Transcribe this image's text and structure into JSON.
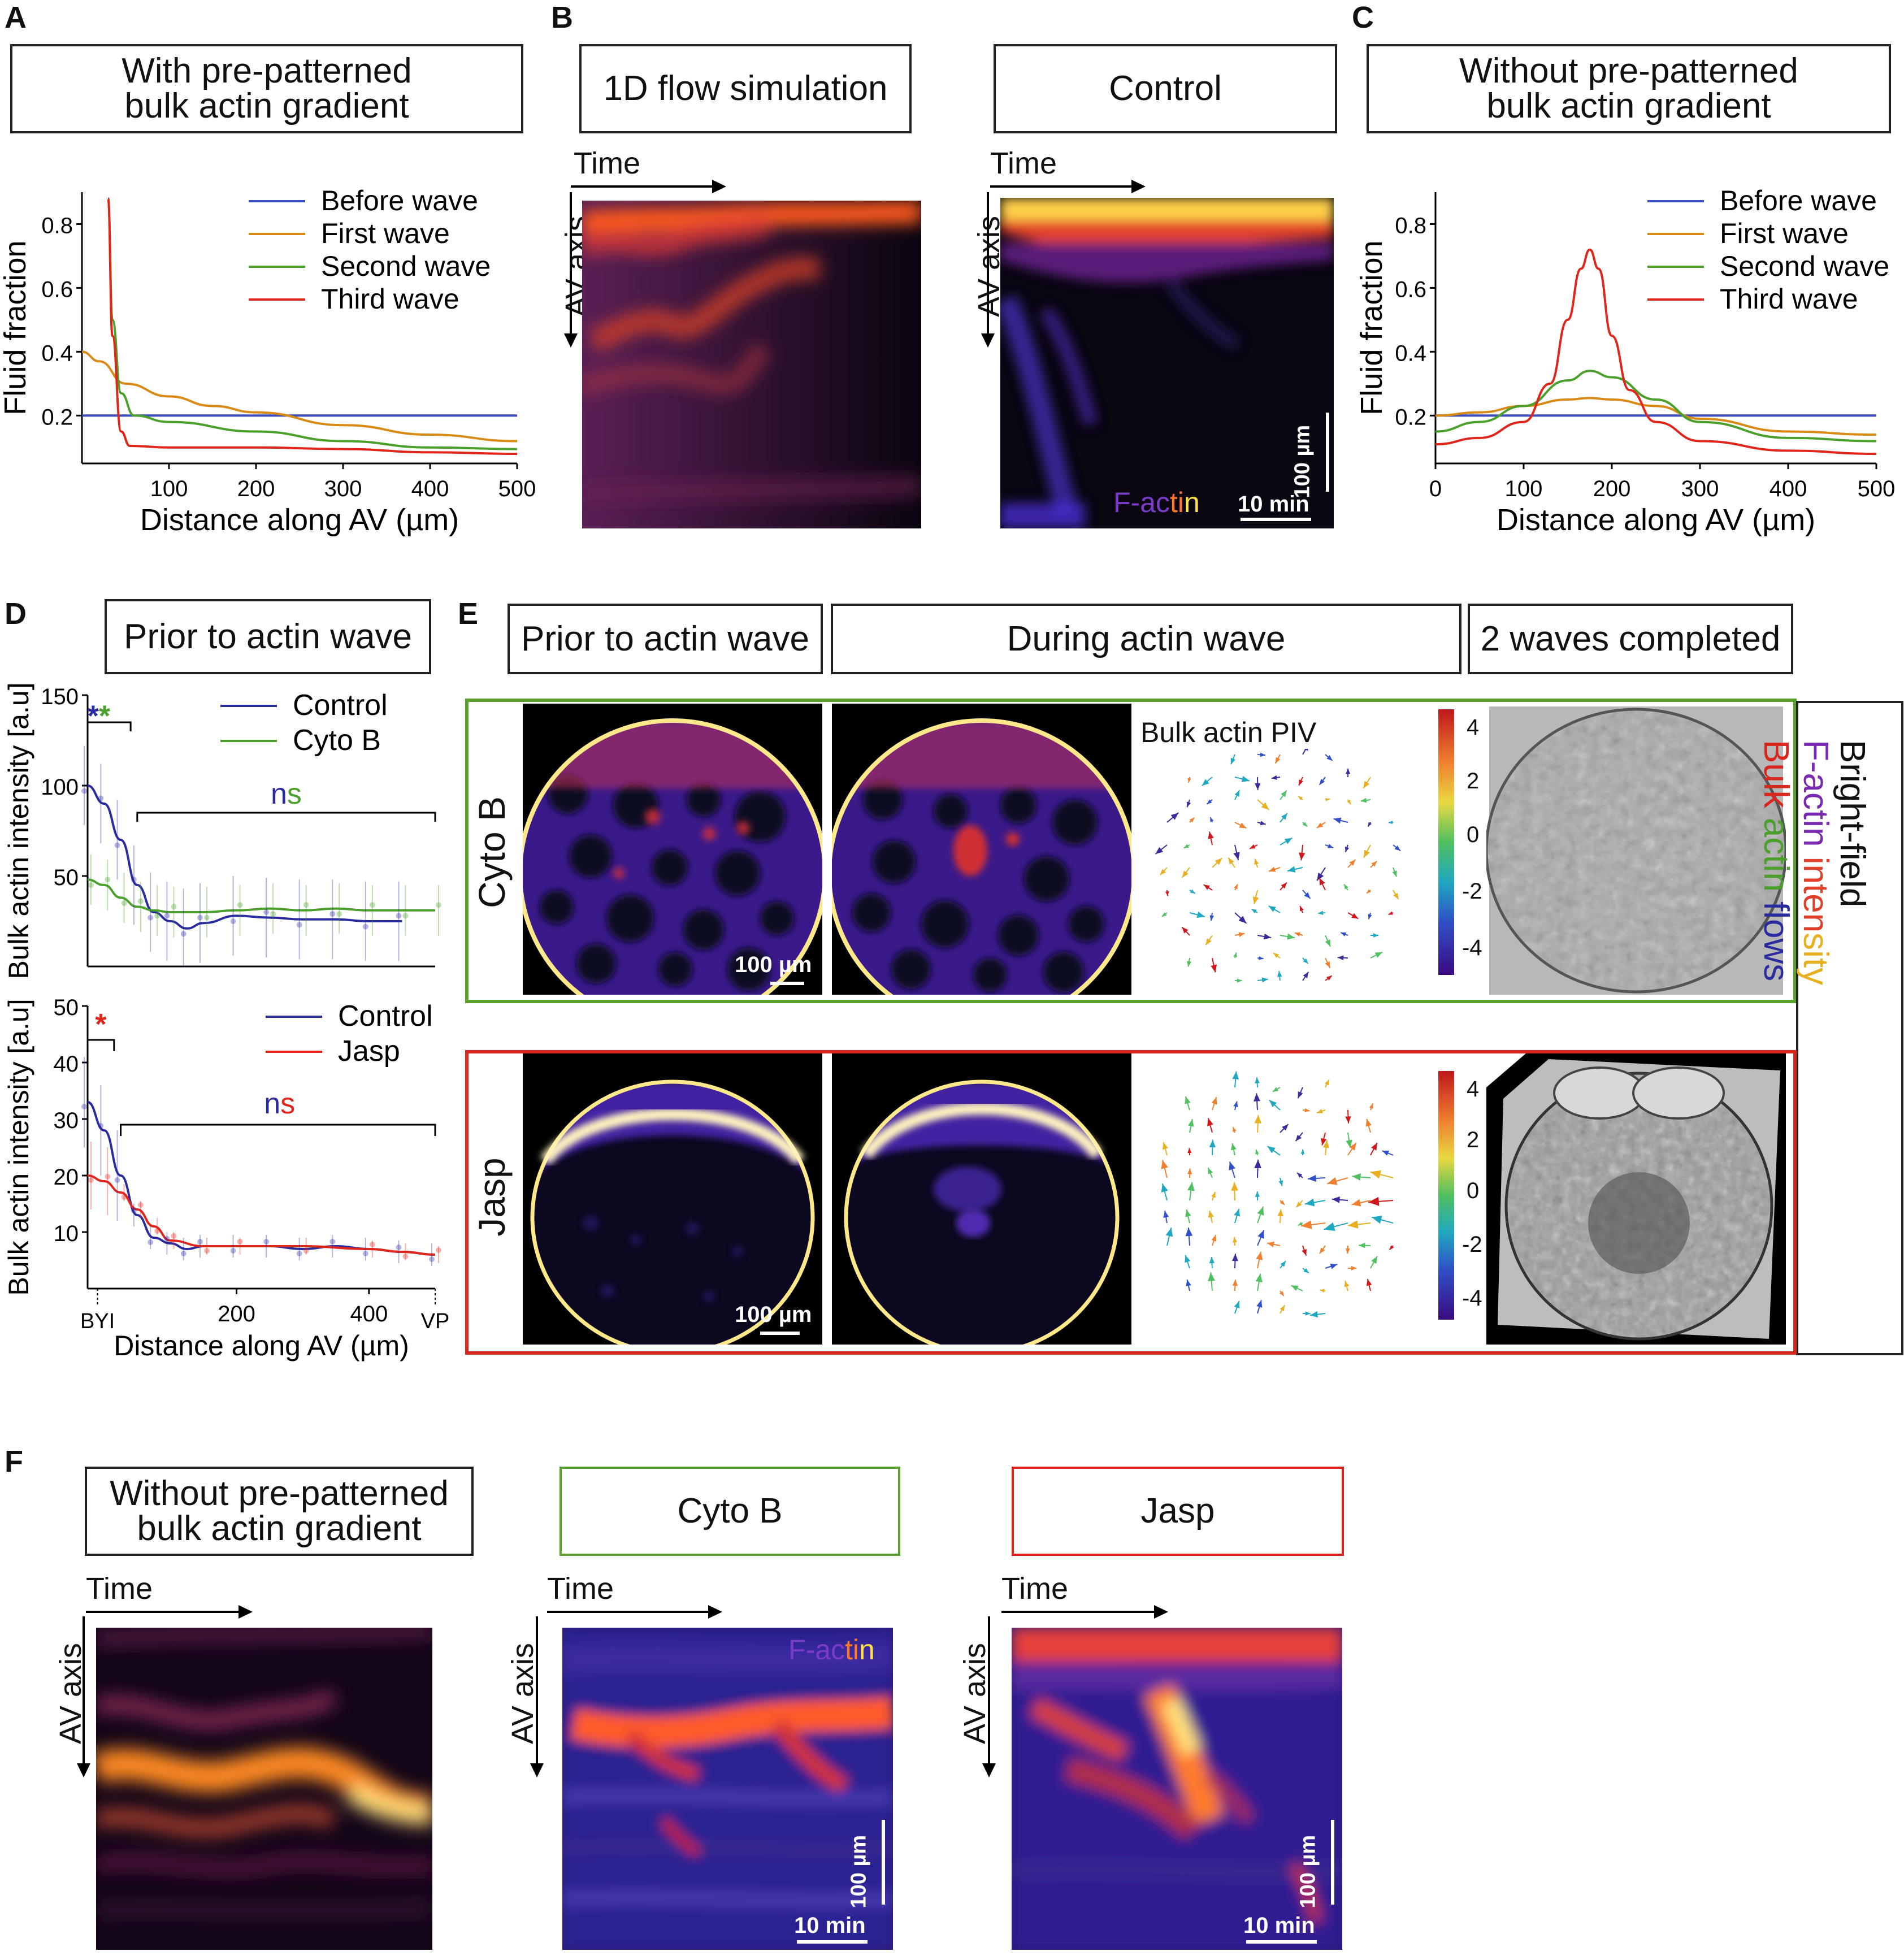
{
  "panels": {
    "A": {
      "letter": "A",
      "title": "With pre-patterned\nbulk actin gradient",
      "chart_data": {
        "type": "line",
        "xlabel": "Distance along AV (µm)",
        "ylabel": "Fluid fraction",
        "xticks": [
          "100",
          "200",
          "300",
          "400",
          "500"
        ],
        "yticks": [
          "0.2",
          "0.4",
          "0.6",
          "0.8"
        ],
        "xlim": [
          0,
          500
        ],
        "ylim": [
          0.05,
          0.9
        ],
        "series": [
          {
            "name": "Before wave",
            "color": "#3b4cc0",
            "x": [
              0,
              100,
              200,
              300,
              400,
              500
            ],
            "y": [
              0.2,
              0.2,
              0.2,
              0.2,
              0.2,
              0.2
            ]
          },
          {
            "name": "First wave",
            "color": "#d98a14",
            "x": [
              0,
              20,
              50,
              100,
              150,
              200,
              300,
              400,
              500
            ],
            "y": [
              0.4,
              0.37,
              0.3,
              0.26,
              0.23,
              0.21,
              0.17,
              0.14,
              0.12
            ]
          },
          {
            "name": "Second wave",
            "color": "#4aa02a",
            "x": [
              30,
              35,
              45,
              60,
              100,
              200,
              300,
              400,
              500
            ],
            "y": [
              0.88,
              0.5,
              0.27,
              0.2,
              0.18,
              0.15,
              0.12,
              0.1,
              0.095
            ]
          },
          {
            "name": "Third wave",
            "color": "#e0251b",
            "x": [
              30,
              35,
              45,
              55,
              100,
              200,
              300,
              400,
              500
            ],
            "y": [
              0.88,
              0.45,
              0.15,
              0.105,
              0.1,
              0.1,
              0.095,
              0.085,
              0.08
            ]
          }
        ]
      }
    },
    "B": {
      "letter": "B",
      "sim_title": "1D flow simulation",
      "ctrl_title": "Control",
      "time_label": "Time",
      "axis_label": "AV axis",
      "scale_um": "100 µm",
      "scale_min": "10 min",
      "stain": [
        "F-ac",
        "ti",
        "n"
      ]
    },
    "C": {
      "letter": "C",
      "title": "Without pre-patterned\nbulk actin gradient",
      "chart_data": {
        "type": "line",
        "xlabel": "Distance along AV (µm)",
        "ylabel": "Fluid fraction",
        "xticks": [
          "0",
          "100",
          "200",
          "300",
          "400",
          "500"
        ],
        "yticks": [
          "0.2",
          "0.4",
          "0.6",
          "0.8"
        ],
        "xlim": [
          0,
          500
        ],
        "ylim": [
          0.05,
          0.9
        ],
        "series": [
          {
            "name": "Before wave",
            "color": "#3b4cc0",
            "x": [
              0,
              100,
              200,
              300,
              400,
              500
            ],
            "y": [
              0.2,
              0.2,
              0.2,
              0.2,
              0.2,
              0.2
            ]
          },
          {
            "name": "First wave",
            "color": "#d98a14",
            "x": [
              0,
              50,
              100,
              150,
              175,
              200,
              250,
              300,
              400,
              500
            ],
            "y": [
              0.2,
              0.21,
              0.23,
              0.25,
              0.255,
              0.25,
              0.23,
              0.19,
              0.15,
              0.14
            ]
          },
          {
            "name": "Second wave",
            "color": "#4aa02a",
            "x": [
              0,
              50,
              100,
              150,
              175,
              200,
              250,
              300,
              400,
              500
            ],
            "y": [
              0.15,
              0.18,
              0.23,
              0.31,
              0.34,
              0.32,
              0.25,
              0.18,
              0.13,
              0.12
            ]
          },
          {
            "name": "Third wave",
            "color": "#e0251b",
            "x": [
              0,
              50,
              100,
              130,
              150,
              165,
              175,
              185,
              200,
              220,
              250,
              300,
              400,
              500
            ],
            "y": [
              0.11,
              0.13,
              0.18,
              0.3,
              0.5,
              0.66,
              0.72,
              0.66,
              0.45,
              0.28,
              0.18,
              0.12,
              0.09,
              0.08
            ]
          }
        ]
      }
    },
    "D": {
      "letter": "D",
      "title": "Prior to actin wave",
      "top": {
        "chart_data": {
          "type": "line",
          "ylabel": "Bulk actin intensity [a.u]",
          "yticks": [
            "50",
            "100",
            "150"
          ],
          "xlim": [
            -25,
            500
          ],
          "ylim": [
            0,
            150
          ],
          "series": [
            {
              "name": "Control",
              "color": "#2b2ba0",
              "x": [
                -25,
                0,
                25,
                50,
                75,
                100,
                125,
                150,
                200,
                250,
                300,
                350,
                400,
                450
              ],
              "y": [
                100,
                90,
                70,
                45,
                30,
                25,
                21,
                24,
                28,
                27,
                26,
                26,
                25,
                25
              ]
            },
            {
              "name": "Cyto B",
              "color": "#4aa02a",
              "x": [
                -25,
                0,
                25,
                50,
                75,
                100,
                150,
                200,
                250,
                300,
                350,
                400,
                450,
                500
              ],
              "y": [
                48,
                45,
                38,
                33,
                31,
                30,
                30,
                31,
                32,
                31,
                32,
                31,
                31,
                31
              ]
            }
          ],
          "signif_left": [
            "*",
            "*"
          ],
          "signif_right": [
            "n",
            "s"
          ]
        }
      },
      "bottom": {
        "chart_data": {
          "type": "line",
          "ylabel": "Bulk actin intensity [a.u]",
          "xlabel": "Distance along AV (µm)",
          "yticks": [
            "10",
            "20",
            "30",
            "40",
            "50"
          ],
          "xticks": [
            "200",
            "400"
          ],
          "xlim": [
            -25,
            500
          ],
          "ylim": [
            0,
            50
          ],
          "series": [
            {
              "name": "Control",
              "color": "#2b2ba0",
              "x": [
                -25,
                0,
                25,
                50,
                75,
                100,
                125,
                150,
                200,
                250,
                300,
                350,
                400,
                450,
                500
              ],
              "y": [
                33,
                28,
                20,
                13,
                9,
                8,
                7,
                7.5,
                7.5,
                7.5,
                7,
                7.5,
                7,
                6.5,
                6
              ]
            },
            {
              "name": "Jasp",
              "color": "#e0251b",
              "x": [
                -25,
                0,
                25,
                50,
                75,
                100,
                150,
                200,
                300,
                400,
                450,
                500
              ],
              "y": [
                20,
                19,
                17,
                14,
                11,
                8.5,
                7.5,
                7.5,
                7.5,
                7,
                6.5,
                6
              ]
            }
          ],
          "signif_left": [
            "*"
          ],
          "signif_right": [
            "n",
            "s"
          ],
          "x_markers": [
            "BYI",
            "VP"
          ]
        }
      }
    },
    "E": {
      "letter": "E",
      "col1": "Prior to actin wave",
      "col2": "During actin wave",
      "col3": "2 waves completed",
      "row1": "Cyto B",
      "row2": "Jasp",
      "piv_label": "Bulk actin PIV",
      "scale_um_1": "100 µm",
      "scale_um_2": "100 µm",
      "colorbar_ticks": [
        "4",
        "2",
        "0",
        "-2",
        "-4"
      ],
      "side_legend": {
        "line1": "Bright-field",
        "line2a": "F-actin ",
        "line2b": "inten",
        "line2c": "sity",
        "line3a": "Bulk ",
        "line3b": "actin ",
        "line3c": "flows"
      }
    },
    "F": {
      "letter": "F",
      "title": "Without pre-patterned\nbulk actin gradient",
      "cyto_title": "Cyto B",
      "jasp_title": "Jasp",
      "time_label": "Time",
      "axis_label": "AV axis",
      "stain": [
        "F-ac",
        "ti",
        "n"
      ],
      "scale_um": "100 µm",
      "scale_min": "10 min"
    }
  },
  "colors": {
    "green": "#5aa02c",
    "red": "#d9261c",
    "navy": "#2b2ba0"
  }
}
